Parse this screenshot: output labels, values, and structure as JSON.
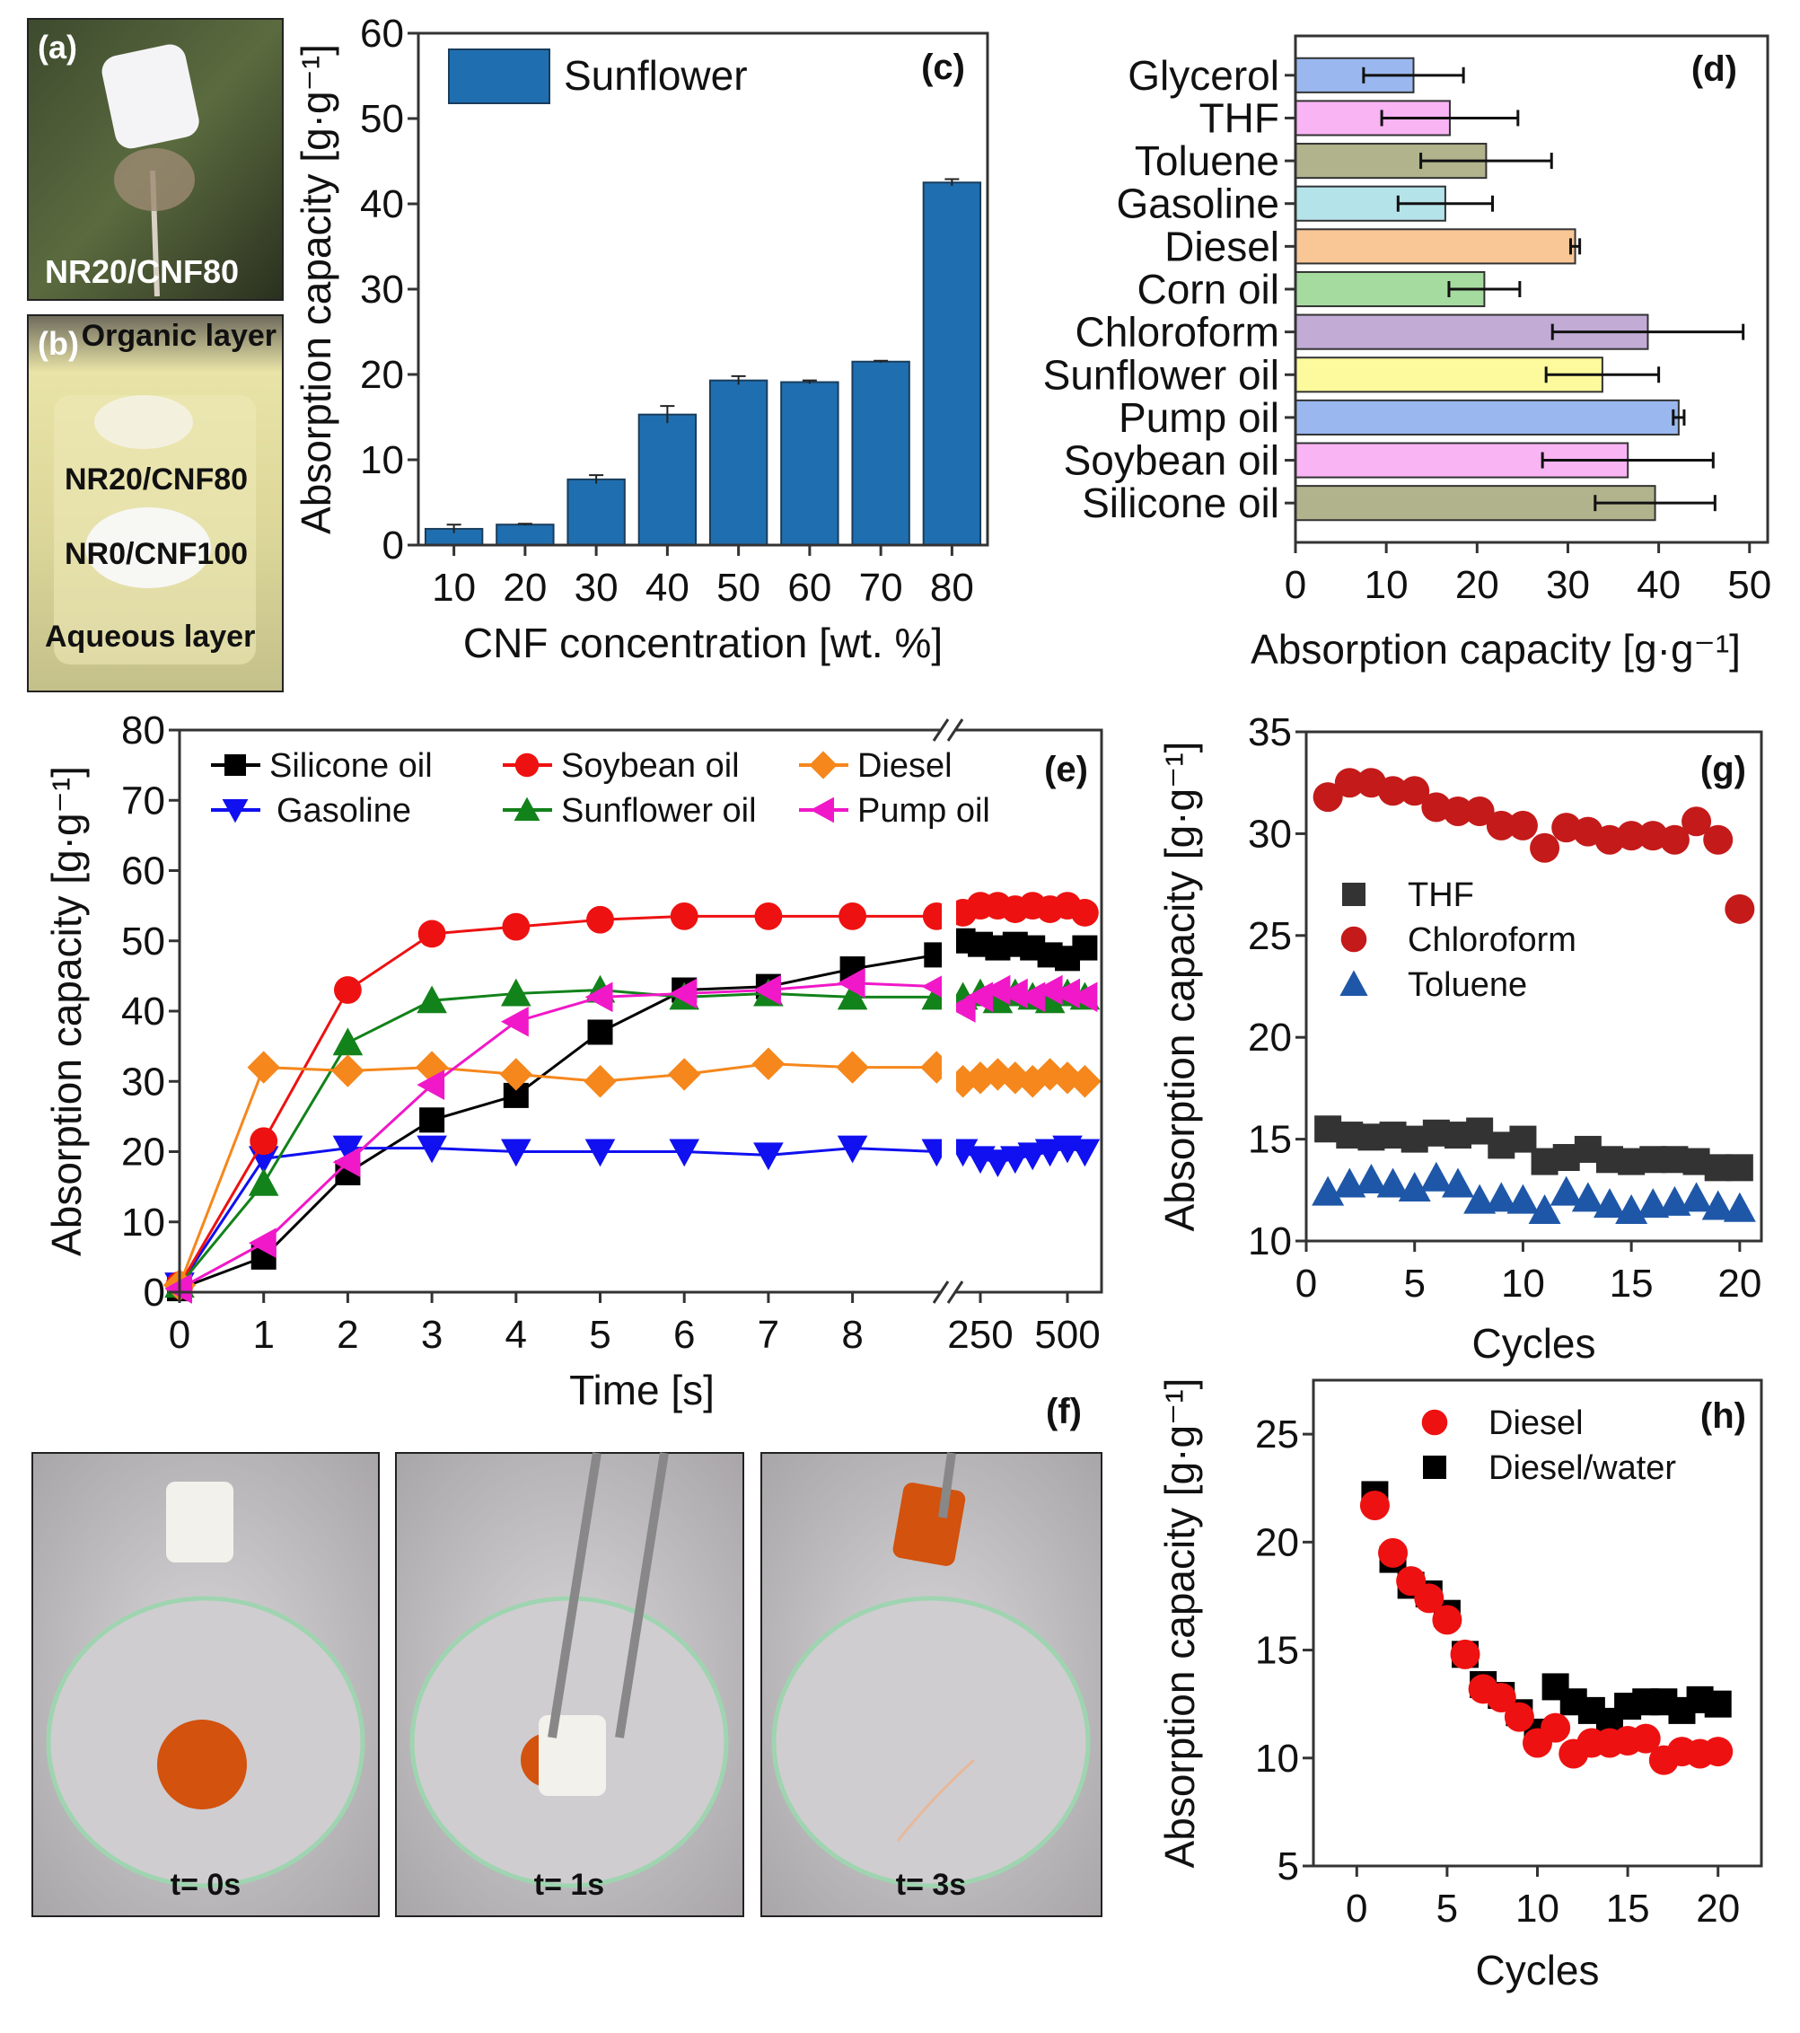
{
  "panels": {
    "a": {
      "label": "(a)",
      "caption": "NR20/CNF80"
    },
    "b": {
      "label": "(b)",
      "organic": "Organic layer",
      "sample1": "NR20/CNF80",
      "sample2": "NR0/CNF100",
      "aqueous": "Aqueous layer"
    },
    "f": {
      "label": "(f)",
      "captions": [
        "t= 0s",
        "t= 1s",
        "t= 3s"
      ]
    }
  },
  "chart_data": [
    {
      "id": "c",
      "panel_label": "(c)",
      "type": "bar",
      "categories": [
        "10",
        "20",
        "30",
        "40",
        "50",
        "60",
        "70",
        "80"
      ],
      "series": [
        {
          "name": "Sunflower",
          "values": [
            1.9,
            2.4,
            7.7,
            15.3,
            19.3,
            19.1,
            21.5,
            42.5
          ],
          "errors": [
            0.5,
            0.1,
            0.5,
            1.0,
            0.5,
            0.2,
            0.1,
            0.4
          ],
          "color": "#1f6fb0"
        }
      ],
      "xlabel": "CNF concentration [wt. %]",
      "ylabel": "Absorption capacity [g·g⁻¹]",
      "ylim": [
        0,
        60
      ],
      "yticks": [
        0,
        10,
        20,
        30,
        40,
        50,
        60
      ],
      "legend": "top-left",
      "grid": false
    },
    {
      "id": "d",
      "panel_label": "(d)",
      "type": "bar",
      "orientation": "horizontal",
      "categories": [
        "Glycerol",
        "THF",
        "Toluene",
        "Gasoline",
        "Diesel",
        "Corn oil",
        "Chloroform",
        "Sunflower oil",
        "Pump oil",
        "Soybean oil",
        "Silicone oil"
      ],
      "values": [
        13.0,
        17.0,
        21.0,
        16.5,
        30.8,
        20.8,
        38.8,
        33.8,
        42.2,
        36.6,
        39.6
      ],
      "errors": [
        5.5,
        7.5,
        7.2,
        5.2,
        0.5,
        3.9,
        10.5,
        6.2,
        0.6,
        9.4,
        6.6
      ],
      "colors": [
        "#9ab8ef",
        "#f9b4f4",
        "#b0b38c",
        "#b4e4ea",
        "#f9c696",
        "#a6dba0",
        "#c2acd6",
        "#fcfa9c",
        "#9ab8ef",
        "#f9b4f4",
        "#b0b38c"
      ],
      "xlabel": "Absorption capacity [g·g⁻¹]",
      "xlim": [
        0,
        52
      ],
      "xticks": [
        0,
        10,
        20,
        30,
        40,
        50
      ],
      "grid": false
    },
    {
      "id": "e",
      "panel_label": "(e)",
      "type": "line",
      "xlabel": "Time [s]",
      "ylabel": "Absorption capacity [g·g⁻¹]",
      "ylim": [
        0,
        80
      ],
      "yticks": [
        0,
        10,
        20,
        30,
        40,
        50,
        60,
        70,
        80
      ],
      "x": [
        0,
        1,
        2,
        3,
        4,
        5,
        6,
        7,
        8,
        9
      ],
      "xticks": [
        0,
        1,
        2,
        3,
        4,
        5,
        6,
        7,
        8
      ],
      "x_after_break": [
        200,
        250,
        300,
        350,
        400,
        450,
        500,
        550
      ],
      "xticks_after_break": [
        250,
        500
      ],
      "axis_break": true,
      "legend": "top",
      "grid": false,
      "series": [
        {
          "name": "Silicone oil",
          "color": "#000000",
          "marker": "square",
          "values": [
            0.5,
            5,
            17,
            24.5,
            28,
            37,
            43,
            43.5,
            46,
            48
          ],
          "values_after_break": [
            50,
            49.5,
            49,
            49.5,
            49,
            48,
            47.5,
            49
          ]
        },
        {
          "name": "Gasoline",
          "color": "#1010f0",
          "marker": "triangle-down",
          "values": [
            1,
            19,
            20.5,
            20.5,
            20,
            20,
            20,
            19.5,
            20.5,
            20
          ],
          "values_after_break": [
            20,
            19,
            18.5,
            19,
            19.5,
            20,
            20.5,
            20
          ]
        },
        {
          "name": "Soybean oil",
          "color": "#ee1111",
          "marker": "circle",
          "values": [
            1,
            21.5,
            43,
            51,
            52,
            53,
            53.5,
            53.5,
            53.5,
            53.5
          ],
          "values_after_break": [
            54,
            55,
            55,
            54.5,
            55,
            54.5,
            55,
            54
          ]
        },
        {
          "name": "Sunflower oil",
          "color": "#12821a",
          "marker": "triangle-up",
          "values": [
            1,
            15.5,
            35.5,
            41.5,
            42.5,
            43,
            42,
            42.5,
            42,
            42
          ],
          "values_after_break": [
            42,
            42.5,
            41.5,
            42.5,
            42,
            41.5,
            42.5,
            42
          ]
        },
        {
          "name": "Diesel",
          "color": "#f5871c",
          "marker": "diamond",
          "values": [
            1,
            32,
            31.5,
            32,
            31,
            30,
            31,
            32.5,
            32,
            32
          ],
          "values_after_break": [
            30,
            30.5,
            31,
            30.5,
            30,
            31,
            30.5,
            30
          ]
        },
        {
          "name": "Pump oil",
          "color": "#f018c8",
          "marker": "triangle-left",
          "values": [
            0.5,
            7,
            18.5,
            29.5,
            38.5,
            42,
            42.5,
            43,
            44,
            43.5
          ],
          "values_after_break": [
            40.5,
            42,
            43,
            42.5,
            42,
            43,
            42.5,
            42
          ]
        }
      ]
    },
    {
      "id": "g",
      "panel_label": "(g)",
      "type": "scatter",
      "xlabel": "Cycles",
      "ylabel": "Absorption capacity [g·g⁻¹]",
      "xlim": [
        0,
        21
      ],
      "xticks": [
        0,
        5,
        10,
        15,
        20
      ],
      "ylim": [
        10,
        35
      ],
      "yticks": [
        10,
        15,
        20,
        25,
        30,
        35
      ],
      "x": [
        1,
        2,
        3,
        4,
        5,
        6,
        7,
        8,
        9,
        10,
        11,
        12,
        13,
        14,
        15,
        16,
        17,
        18,
        19,
        20
      ],
      "legend": "center-left",
      "grid": false,
      "series": [
        {
          "name": "THF",
          "color": "#333333",
          "marker": "square",
          "values": [
            15.5,
            15.2,
            15.1,
            15.2,
            15.0,
            15.3,
            15.2,
            15.4,
            14.7,
            15.0,
            13.9,
            14.1,
            14.5,
            14.0,
            13.9,
            14.0,
            14.0,
            13.9,
            13.6,
            13.6
          ]
        },
        {
          "name": "Chloroform",
          "color": "#c41a1a",
          "marker": "circle",
          "values": [
            31.8,
            32.5,
            32.5,
            32.1,
            32.1,
            31.3,
            31.1,
            31.1,
            30.4,
            30.4,
            29.3,
            30.3,
            30.1,
            29.7,
            29.9,
            29.9,
            29.7,
            30.6,
            29.7,
            26.3
          ]
        },
        {
          "name": "Toluene",
          "color": "#1f57a8",
          "marker": "triangle-up",
          "values": [
            12.4,
            12.8,
            13.0,
            12.8,
            12.6,
            13.1,
            12.8,
            12.0,
            12.1,
            12.0,
            11.5,
            12.4,
            12.1,
            11.8,
            11.5,
            11.8,
            11.9,
            12.1,
            11.7,
            11.6
          ]
        }
      ]
    },
    {
      "id": "h",
      "panel_label": "(h)",
      "type": "scatter",
      "xlabel": "Cycles",
      "ylabel": "Absorption capacity [g·g⁻¹]",
      "xlim": [
        -2.4,
        22.4
      ],
      "xticks": [
        0,
        5,
        10,
        15,
        20
      ],
      "ylim": [
        5,
        27.5
      ],
      "yticks": [
        5,
        10,
        15,
        20,
        25
      ],
      "x": [
        1,
        2,
        3,
        4,
        5,
        6,
        7,
        8,
        9,
        10,
        11,
        12,
        13,
        14,
        15,
        16,
        17,
        18,
        19,
        20
      ],
      "legend": "top",
      "grid": false,
      "series": [
        {
          "name": "Diesel/water",
          "color": "#000000",
          "marker": "square",
          "values": [
            22.2,
            19.2,
            18.0,
            17.6,
            16.7,
            14.8,
            13.4,
            12.9,
            12.1,
            11.2,
            13.3,
            12.6,
            12.2,
            11.7,
            12.4,
            12.6,
            12.6,
            12.2,
            12.7,
            12.5
          ]
        },
        {
          "name": "Diesel",
          "color": "#ee1111",
          "marker": "circle",
          "values": [
            21.7,
            19.5,
            18.2,
            17.4,
            16.4,
            14.8,
            13.2,
            12.8,
            11.9,
            10.7,
            11.4,
            10.2,
            10.7,
            10.7,
            10.8,
            10.9,
            9.9,
            10.3,
            10.2,
            10.3
          ]
        }
      ],
      "legend_order": [
        "Diesel",
        "Diesel/water"
      ]
    }
  ]
}
